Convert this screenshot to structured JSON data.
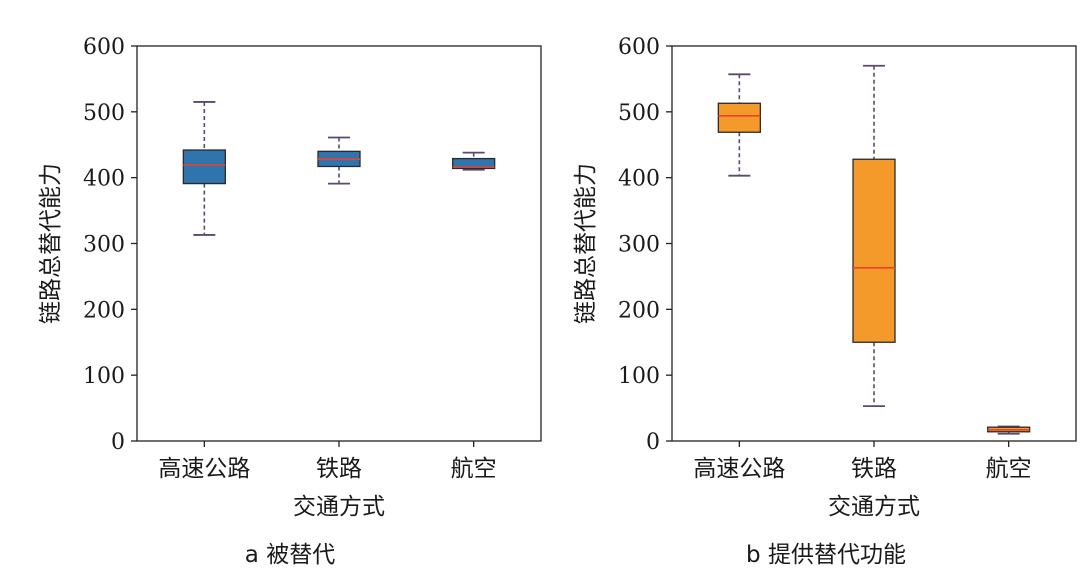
{
  "chart_data": [
    {
      "type": "box",
      "caption": "a 被替代",
      "xlabel": "交通方式",
      "ylabel": "链路总替代能力",
      "ylim": [
        0,
        600
      ],
      "yticks": [
        "0",
        "100",
        "200",
        "300",
        "400",
        "500",
        "600"
      ],
      "categories": [
        "高速公路",
        "铁路",
        "航空"
      ],
      "box_color": "#2f74ad",
      "median_color": "#e8432e",
      "whisker_color": "#5a4a6e",
      "grid": false,
      "boxes": [
        {
          "category": "高速公路",
          "min": 313,
          "q1": 391,
          "median": 419,
          "q3": 442,
          "max": 515
        },
        {
          "category": "铁路",
          "min": 391,
          "q1": 417,
          "median": 428,
          "q3": 440,
          "max": 461
        },
        {
          "category": "航空",
          "min": 412,
          "q1": 414,
          "median": 416,
          "q3": 429,
          "max": 438
        }
      ]
    },
    {
      "type": "box",
      "caption": "b 提供替代功能",
      "xlabel": "交通方式",
      "ylabel": "链路总替代能力",
      "ylim": [
        0,
        600
      ],
      "yticks": [
        "0",
        "100",
        "200",
        "300",
        "400",
        "500",
        "600"
      ],
      "categories": [
        "高速公路",
        "铁路",
        "航空"
      ],
      "box_color": "#f39a2a",
      "median_color": "#e8432e",
      "whisker_color": "#5a4a6e",
      "grid": false,
      "boxes": [
        {
          "category": "高速公路",
          "min": 403,
          "q1": 469,
          "median": 494,
          "q3": 513,
          "max": 557
        },
        {
          "category": "铁路",
          "min": 53,
          "q1": 150,
          "median": 263,
          "q3": 428,
          "max": 570
        },
        {
          "category": "航空",
          "min": 11,
          "q1": 14,
          "median": 17,
          "q3": 21,
          "max": 22
        }
      ]
    }
  ]
}
